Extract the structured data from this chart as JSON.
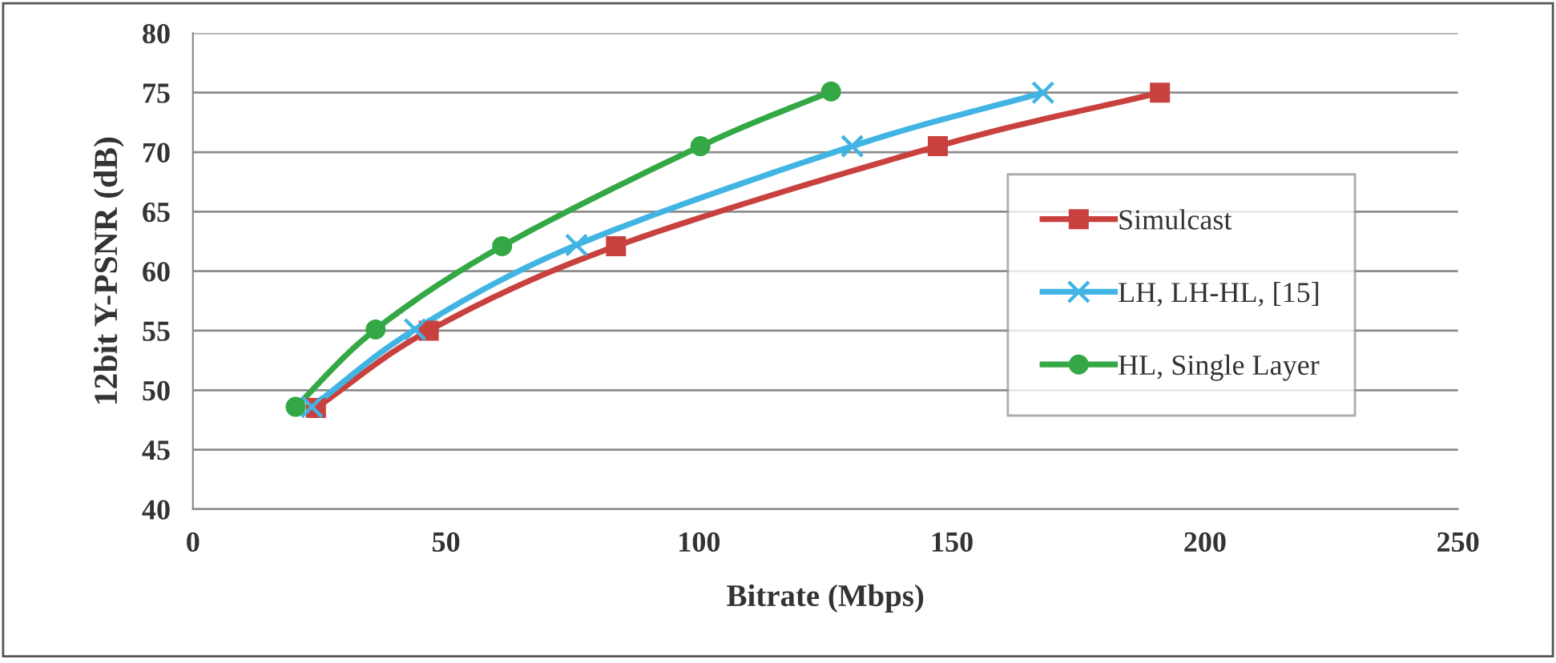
{
  "chart_data": {
    "type": "line",
    "xlabel": "Bitrate (Mbps)",
    "ylabel": "12bit Y-PSNR (dB)",
    "xlim": [
      0,
      250
    ],
    "xticks": [
      0,
      50,
      100,
      150,
      200,
      250
    ],
    "ylim": [
      40,
      80
    ],
    "yticks": [
      40,
      45,
      50,
      55,
      60,
      65,
      70,
      75,
      80
    ],
    "grid": "y",
    "legend": "right",
    "line_style": "solid",
    "series": [
      {
        "name": "Simulcast",
        "color": "#c9413e",
        "marker": "square",
        "x": [
          24.3,
          46.6,
          83.6,
          147.2,
          191.1
        ],
        "values": [
          48.5,
          55,
          62.1,
          70.5,
          75
        ]
      },
      {
        "name": "LH, LH-HL, [15]",
        "color": "#41b4e4",
        "marker": "cross",
        "x": [
          23.5,
          43.9,
          75.8,
          130.3,
          168
        ],
        "values": [
          48.6,
          55.1,
          62.2,
          70.5,
          75
        ]
      },
      {
        "name": "HL, Single Layer",
        "color": "#33a845",
        "marker": "circle",
        "x": [
          20.3,
          36.1,
          61.1,
          100.3,
          126.1
        ],
        "values": [
          48.6,
          55.1,
          62.1,
          70.5,
          75.1
        ]
      }
    ]
  }
}
